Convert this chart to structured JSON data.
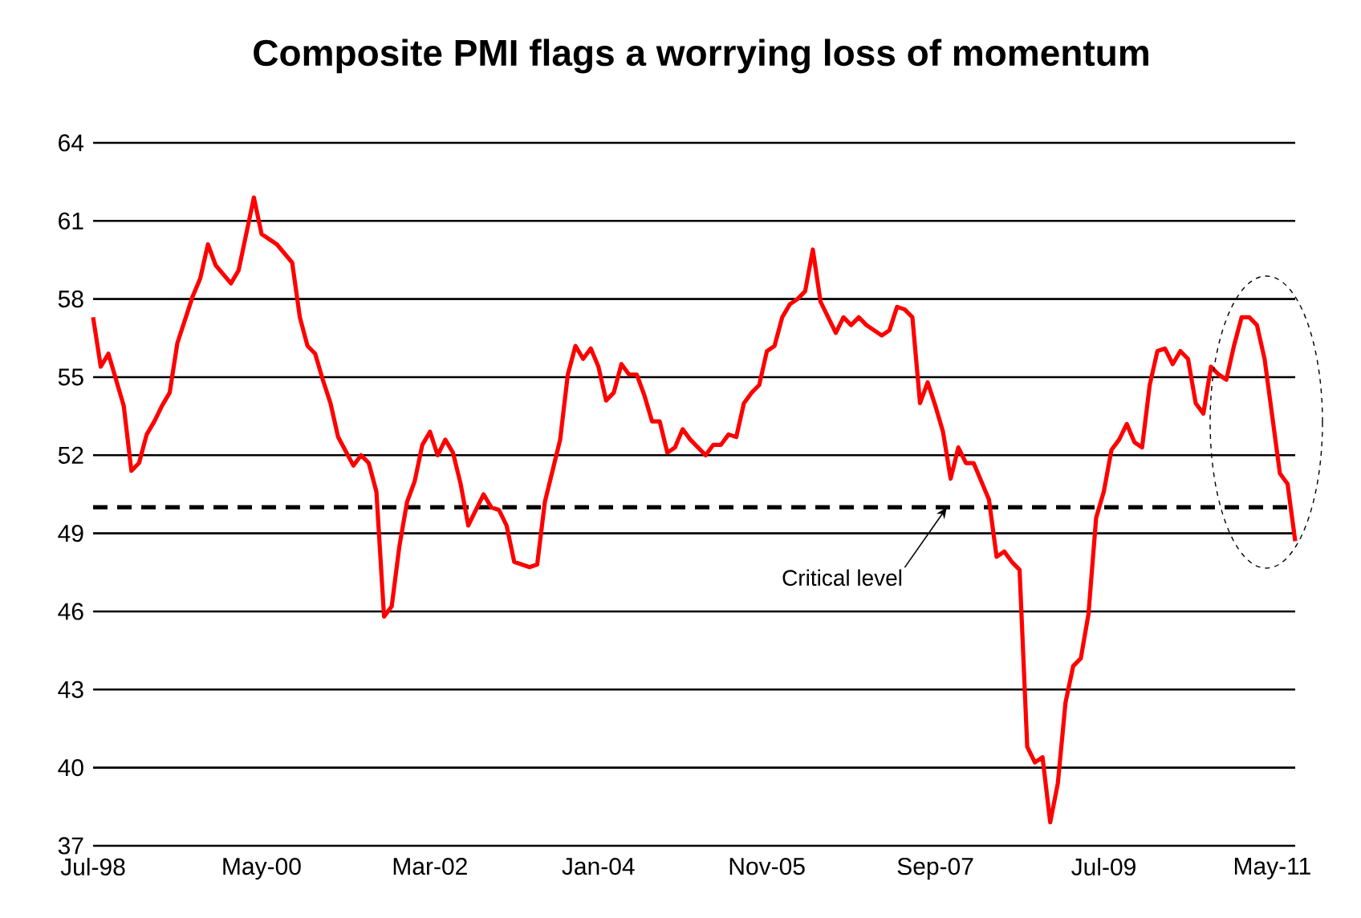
{
  "chart_data": {
    "type": "line",
    "title": "Composite  PMI flags a worrying loss of momentum",
    "xlim": [
      "1998-07",
      "2011-08"
    ],
    "xticks": [
      {
        "value": "1998-07",
        "label": "Jul-98"
      },
      {
        "value": "2000-05",
        "label": "May-00"
      },
      {
        "value": "2002-03",
        "label": "Mar-02"
      },
      {
        "value": "2004-01",
        "label": "Jan-04"
      },
      {
        "value": "2005-11",
        "label": "Nov-05"
      },
      {
        "value": "2007-09",
        "label": "Sep-07"
      },
      {
        "value": "2009-07",
        "label": "Jul-09"
      },
      {
        "value": "2011-05",
        "label": "May-11"
      }
    ],
    "ylim": [
      37,
      64
    ],
    "yticks": [
      37,
      40,
      43,
      46,
      49,
      52,
      55,
      58,
      61,
      64
    ],
    "grid": "y",
    "line_style": "solid",
    "ref_lines": [
      {
        "axis": "y",
        "value": 50,
        "label": "Critical level",
        "color": "#000000",
        "line_style": "dashed"
      }
    ],
    "series": [
      {
        "color": "#ff0000",
        "x": [
          "1998-07",
          "1998-08",
          "1998-09",
          "1998-11",
          "1998-12",
          "1999-01",
          "1999-02",
          "1999-03",
          "1999-04",
          "1999-05",
          "1999-06",
          "1999-07",
          "1999-08",
          "1999-09",
          "1999-10",
          "1999-11",
          "2000-01",
          "2000-02",
          "2000-04",
          "2000-05",
          "2000-07",
          "2000-09",
          "2000-10",
          "2000-11",
          "2000-12",
          "2001-01",
          "2001-02",
          "2001-03",
          "2001-05",
          "2001-06",
          "2001-07",
          "2001-08",
          "2001-09",
          "2001-10",
          "2001-11",
          "2001-12",
          "2002-01",
          "2002-02",
          "2002-03",
          "2002-04",
          "2002-05",
          "2002-06",
          "2002-07",
          "2002-08",
          "2002-10",
          "2002-11",
          "2002-12",
          "2003-01",
          "2003-02",
          "2003-04",
          "2003-05",
          "2003-06",
          "2003-08",
          "2003-09",
          "2003-10",
          "2003-11",
          "2003-12",
          "2004-01",
          "2004-02",
          "2004-03",
          "2004-04",
          "2004-05",
          "2004-06",
          "2004-07",
          "2004-08",
          "2004-09",
          "2004-10",
          "2004-11",
          "2004-12",
          "2005-01",
          "2005-03",
          "2005-04",
          "2005-05",
          "2005-06",
          "2005-07",
          "2005-08",
          "2005-09",
          "2005-10",
          "2005-11",
          "2005-12",
          "2006-01",
          "2006-02",
          "2006-03",
          "2006-04",
          "2006-05",
          "2006-06",
          "2006-07",
          "2006-08",
          "2006-09",
          "2006-10",
          "2006-11",
          "2006-12",
          "2007-01",
          "2007-02",
          "2007-03",
          "2007-04",
          "2007-05",
          "2007-06",
          "2007-07",
          "2007-08",
          "2007-09",
          "2007-10",
          "2007-11",
          "2007-12",
          "2008-01",
          "2008-02",
          "2008-04",
          "2008-05",
          "2008-06",
          "2008-07",
          "2008-08",
          "2008-09",
          "2008-10",
          "2008-11",
          "2008-12",
          "2009-01",
          "2009-02",
          "2009-03",
          "2009-04",
          "2009-05",
          "2009-06",
          "2009-07",
          "2009-08",
          "2009-09",
          "2009-10",
          "2009-11",
          "2009-12",
          "2010-01",
          "2010-02",
          "2010-03",
          "2010-04",
          "2010-05",
          "2010-06",
          "2010-07",
          "2010-08",
          "2010-09",
          "2010-10",
          "2010-11",
          "2010-12",
          "2011-01",
          "2011-02",
          "2011-03",
          "2011-04",
          "2011-05",
          "2011-06",
          "2011-07",
          "2011-08"
        ],
        "values": [
          57.3,
          55.4,
          55.9,
          53.9,
          51.4,
          51.7,
          52.8,
          53.3,
          53.9,
          54.4,
          56.3,
          57.2,
          58.1,
          58.8,
          60.1,
          59.3,
          58.6,
          59.1,
          61.9,
          60.5,
          60.1,
          59.4,
          57.3,
          56.2,
          55.9,
          54.9,
          54.0,
          52.7,
          51.6,
          52.0,
          51.7,
          50.6,
          45.8,
          46.2,
          48.5,
          50.2,
          51.0,
          52.4,
          52.9,
          52.0,
          52.6,
          52.1,
          50.9,
          49.3,
          50.5,
          50.0,
          49.9,
          49.3,
          47.9,
          47.7,
          47.8,
          50.2,
          52.6,
          55.1,
          56.2,
          55.7,
          56.1,
          55.4,
          54.1,
          54.4,
          55.5,
          55.1,
          55.1,
          54.3,
          53.3,
          53.3,
          52.1,
          52.3,
          53.0,
          52.6,
          52.0,
          52.4,
          52.4,
          52.8,
          52.7,
          54.0,
          54.4,
          54.7,
          56.0,
          56.2,
          57.3,
          57.8,
          58.0,
          58.3,
          59.9,
          57.9,
          57.3,
          56.7,
          57.3,
          57.0,
          57.3,
          57.0,
          56.8,
          56.6,
          56.8,
          57.7,
          57.6,
          57.3,
          54.0,
          54.8,
          53.9,
          52.9,
          51.1,
          52.3,
          51.7,
          51.7,
          50.3,
          48.1,
          48.3,
          47.9,
          47.6,
          40.8,
          40.2,
          40.4,
          37.9,
          39.4,
          42.5,
          43.9,
          44.2,
          45.9,
          49.6,
          50.6,
          52.2,
          52.6,
          53.2,
          52.5,
          52.3,
          54.7,
          56.0,
          56.1,
          55.5,
          56.0,
          55.7,
          54.0,
          53.6,
          55.4,
          55.1,
          54.9,
          56.2,
          57.3,
          57.3,
          57.0,
          55.7,
          53.5,
          51.3,
          50.9,
          48.7
        ]
      }
    ]
  }
}
